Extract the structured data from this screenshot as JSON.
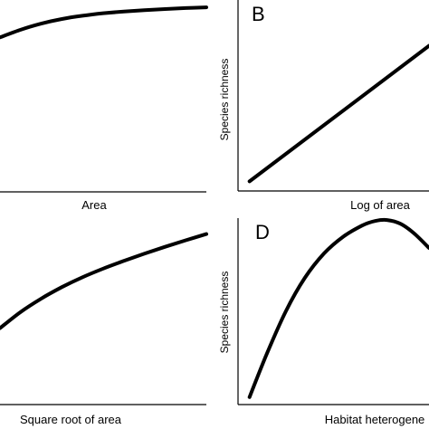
{
  "chart_data": [
    {
      "type": "line",
      "panel_label": "",
      "xlabel": "Area",
      "ylabel": "",
      "xlim": [
        0,
        1
      ],
      "ylim": [
        0,
        1
      ],
      "series": [
        {
          "x": [
            0,
            0.1,
            0.2,
            0.3,
            0.4,
            0.5,
            0.6,
            0.7,
            0.8,
            0.9,
            1.0
          ],
          "y": [
            0.805,
            0.845,
            0.877,
            0.901,
            0.918,
            0.931,
            0.94,
            0.947,
            0.953,
            0.958,
            0.962
          ]
        }
      ]
    },
    {
      "type": "line",
      "panel_label": "B",
      "xlabel": "Log of area",
      "ylabel": "Species richness",
      "xlim": [
        0,
        1
      ],
      "ylim": [
        0,
        1
      ],
      "series": [
        {
          "x": [
            0.06,
            1.0
          ],
          "y": [
            0.05,
            0.76
          ]
        }
      ]
    },
    {
      "type": "line",
      "panel_label": "",
      "xlabel": "Square root of area",
      "ylabel": "",
      "xlim": [
        0,
        1
      ],
      "ylim": [
        0,
        1
      ],
      "series": [
        {
          "x": [
            0,
            0.1,
            0.2,
            0.3,
            0.4,
            0.5,
            0.6,
            0.7,
            0.8,
            0.9,
            1.0
          ],
          "y": [
            0.4,
            0.485,
            0.555,
            0.615,
            0.667,
            0.712,
            0.752,
            0.79,
            0.826,
            0.86,
            0.893
          ]
        }
      ]
    },
    {
      "type": "line",
      "panel_label": "D",
      "xlabel": "Habitat heterogene",
      "ylabel": "Species richness",
      "xlim": [
        0,
        1
      ],
      "ylim": [
        0,
        1
      ],
      "series": [
        {
          "x": [
            0.06,
            0.15,
            0.25,
            0.35,
            0.45,
            0.55,
            0.65,
            0.72,
            0.78,
            0.85,
            0.92,
            1.0
          ],
          "y": [
            0.04,
            0.27,
            0.5,
            0.68,
            0.81,
            0.9,
            0.96,
            0.985,
            0.99,
            0.97,
            0.92,
            0.84
          ]
        }
      ]
    }
  ]
}
